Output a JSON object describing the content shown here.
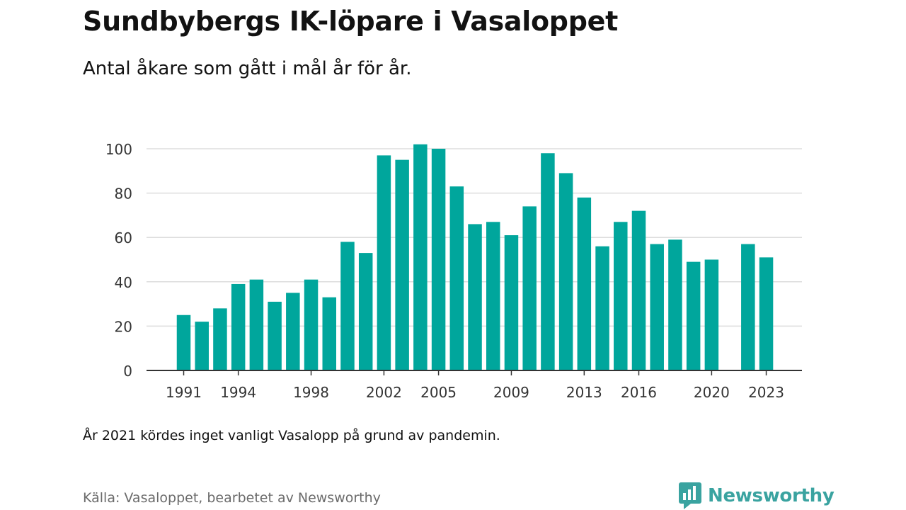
{
  "header": {
    "title": "Sundbybergs IK-löpare i Vasaloppet",
    "subtitle": "Antal åkare som gått i mål år för år."
  },
  "footer": {
    "note": "År 2021 kördes inget vanligt Vasalopp på grund av pandemin.",
    "source": "Källa: Vasaloppet, bearbetet av Newsworthy",
    "brand": "Newsworthy",
    "brand_icon": "newsworthy-logo-icon"
  },
  "colors": {
    "bar": "#00a69c",
    "grid": "#dddddd",
    "axis": "#333333",
    "brand": "#3aa3a0"
  },
  "chart_data": {
    "type": "bar",
    "categories": [
      "1991",
      "1992",
      "1993",
      "1994",
      "1995",
      "1996",
      "1997",
      "1998",
      "1999",
      "2000",
      "2001",
      "2002",
      "2003",
      "2004",
      "2005",
      "2006",
      "2007",
      "2008",
      "2009",
      "2010",
      "2011",
      "2012",
      "2013",
      "2014",
      "2015",
      "2016",
      "2017",
      "2018",
      "2019",
      "2020",
      "2021",
      "2022",
      "2023"
    ],
    "values": [
      25,
      22,
      28,
      39,
      41,
      31,
      35,
      41,
      33,
      58,
      53,
      97,
      95,
      102,
      100,
      83,
      66,
      67,
      61,
      74,
      98,
      89,
      78,
      56,
      67,
      72,
      57,
      59,
      49,
      50,
      null,
      57,
      51
    ],
    "xticks": [
      "1991",
      "1994",
      "1998",
      "2002",
      "2005",
      "2009",
      "2013",
      "2016",
      "2020",
      "2023"
    ],
    "yticks": [
      0,
      20,
      40,
      60,
      80,
      100
    ],
    "ylim": [
      0,
      105
    ],
    "grid": true,
    "legend": "none"
  }
}
